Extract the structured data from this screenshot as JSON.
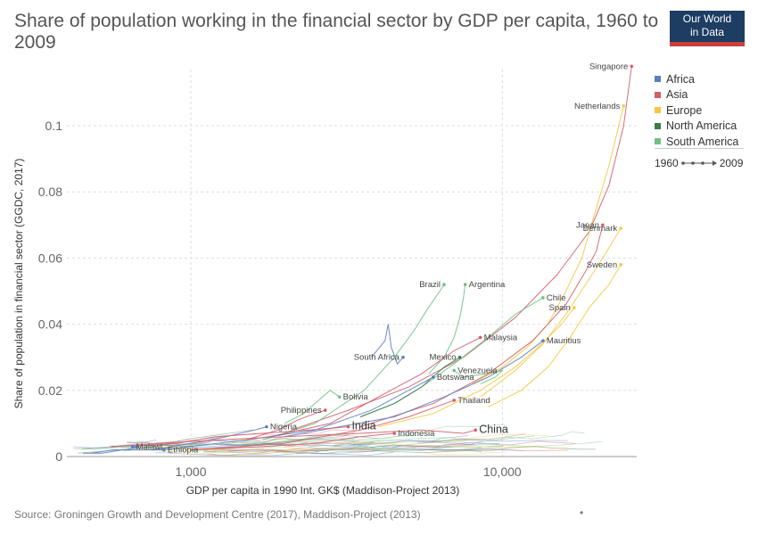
{
  "title": "Share of population working in the financial sector by GDP per capita, 1960 to 2009",
  "logo": {
    "line1": "Our World",
    "line2": "in Data"
  },
  "source": "Source: Groningen Growth and Development Centre (2017), Maddison-Project (2013)",
  "footer_dot": "•",
  "time_legend": {
    "start": "1960",
    "end": "2009"
  },
  "colors": {
    "Africa": "#5b80c0",
    "Asia": "#d25e6c",
    "Europe": "#f5c842",
    "North America": "#3e7c4b",
    "South America": "#6fc082"
  },
  "chart_data": {
    "type": "scatter",
    "title": "Share of population working in the financial sector by GDP per capita, 1960 to 2009",
    "xlabel": "GDP per capita in 1990 Int. GK$ (Maddison-Project 2013)",
    "ylabel": "Share of population in financial sector (GGDC, 2017)",
    "x_scale": "log",
    "xlim": [
      400,
      27000
    ],
    "ylim": [
      0,
      0.117
    ],
    "x_ticks": [
      {
        "value": 1000,
        "label": "1,000"
      },
      {
        "value": 10000,
        "label": "10,000"
      }
    ],
    "y_ticks": [
      {
        "value": 0,
        "label": "0"
      },
      {
        "value": 0.02,
        "label": "0.02"
      },
      {
        "value": 0.04,
        "label": "0.04"
      },
      {
        "value": 0.06,
        "label": "0.06"
      },
      {
        "value": 0.08,
        "label": "0.08"
      },
      {
        "value": 0.1,
        "label": "0.1"
      }
    ],
    "grid": true,
    "legend": {
      "position": "right",
      "entries": [
        "Africa",
        "Asia",
        "Europe",
        "North America",
        "South America"
      ]
    },
    "series": [
      {
        "name": "Singapore",
        "region": "Asia",
        "label_pos": "left",
        "points": [
          [
            2100,
            0.008
          ],
          [
            3200,
            0.014
          ],
          [
            5000,
            0.021
          ],
          [
            7500,
            0.03
          ],
          [
            11000,
            0.042
          ],
          [
            15000,
            0.055
          ],
          [
            19000,
            0.068
          ],
          [
            22000,
            0.082
          ],
          [
            24500,
            0.1
          ],
          [
            26000,
            0.118
          ]
        ]
      },
      {
        "name": "Netherlands",
        "region": "Europe",
        "label_pos": "left",
        "points": [
          [
            8000,
            0.022
          ],
          [
            10000,
            0.027
          ],
          [
            12000,
            0.033
          ],
          [
            14000,
            0.04
          ],
          [
            16000,
            0.05
          ],
          [
            18000,
            0.06
          ],
          [
            20000,
            0.075
          ],
          [
            22000,
            0.088
          ],
          [
            24500,
            0.106
          ]
        ]
      },
      {
        "name": "Denmark",
        "region": "Europe",
        "label_pos": "left",
        "points": [
          [
            8500,
            0.018
          ],
          [
            11000,
            0.026
          ],
          [
            13500,
            0.034
          ],
          [
            16000,
            0.043
          ],
          [
            18500,
            0.052
          ],
          [
            21000,
            0.06
          ],
          [
            24000,
            0.069
          ]
        ]
      },
      {
        "name": "Japan",
        "region": "Asia",
        "label_pos": "left",
        "points": [
          [
            3500,
            0.009
          ],
          [
            6000,
            0.016
          ],
          [
            9000,
            0.025
          ],
          [
            12500,
            0.035
          ],
          [
            16000,
            0.046
          ],
          [
            18500,
            0.056
          ],
          [
            20000,
            0.062
          ],
          [
            21000,
            0.07
          ]
        ]
      },
      {
        "name": "Sweden",
        "region": "Europe",
        "label_pos": "left",
        "points": [
          [
            9000,
            0.015
          ],
          [
            11500,
            0.02
          ],
          [
            14000,
            0.027
          ],
          [
            16500,
            0.036
          ],
          [
            19000,
            0.045
          ],
          [
            22000,
            0.052
          ],
          [
            24000,
            0.058
          ]
        ]
      },
      {
        "name": "Spain",
        "region": "Europe",
        "label_pos": "left",
        "points": [
          [
            4000,
            0.009
          ],
          [
            6000,
            0.013
          ],
          [
            8500,
            0.02
          ],
          [
            11000,
            0.027
          ],
          [
            13000,
            0.033
          ],
          [
            15500,
            0.04
          ],
          [
            17000,
            0.045
          ]
        ]
      },
      {
        "name": "Mauritius",
        "region": "Africa",
        "label_pos": "right",
        "points": [
          [
            2000,
            0.006
          ],
          [
            3000,
            0.009
          ],
          [
            4500,
            0.012
          ],
          [
            6500,
            0.018
          ],
          [
            9000,
            0.024
          ],
          [
            11500,
            0.03
          ],
          [
            13500,
            0.035
          ]
        ]
      },
      {
        "name": "Chile",
        "region": "South America",
        "label_pos": "right",
        "points": [
          [
            3500,
            0.012
          ],
          [
            4500,
            0.016
          ],
          [
            5500,
            0.021
          ],
          [
            7000,
            0.028
          ],
          [
            9000,
            0.036
          ],
          [
            11000,
            0.043
          ],
          [
            13500,
            0.048
          ]
        ]
      },
      {
        "name": "Brazil",
        "region": "South America",
        "label_pos": "left",
        "points": [
          [
            1700,
            0.005
          ],
          [
            2500,
            0.01
          ],
          [
            3600,
            0.02
          ],
          [
            4500,
            0.03
          ],
          [
            5200,
            0.038
          ],
          [
            5700,
            0.044
          ],
          [
            6300,
            0.05
          ],
          [
            6500,
            0.052
          ]
        ]
      },
      {
        "name": "Argentina",
        "region": "South America",
        "label_pos": "right",
        "points": [
          [
            5800,
            0.025
          ],
          [
            6500,
            0.03
          ],
          [
            7000,
            0.036
          ],
          [
            7300,
            0.042
          ],
          [
            7500,
            0.048
          ],
          [
            7600,
            0.052
          ]
        ]
      },
      {
        "name": "South Africa",
        "region": "Africa",
        "label_pos": "left",
        "points": [
          [
            3800,
            0.03
          ],
          [
            4200,
            0.035
          ],
          [
            4300,
            0.04
          ],
          [
            4400,
            0.033
          ],
          [
            4600,
            0.028
          ],
          [
            4800,
            0.03
          ]
        ]
      },
      {
        "name": "Malaysia",
        "region": "Asia",
        "label_pos": "right",
        "points": [
          [
            1800,
            0.006
          ],
          [
            2800,
            0.01
          ],
          [
            4000,
            0.018
          ],
          [
            5500,
            0.025
          ],
          [
            7000,
            0.032
          ],
          [
            8500,
            0.036
          ]
        ]
      },
      {
        "name": "Mexico",
        "region": "North America",
        "label_pos": "left",
        "points": [
          [
            3500,
            0.012
          ],
          [
            4500,
            0.016
          ],
          [
            5500,
            0.021
          ],
          [
            6500,
            0.027
          ],
          [
            7300,
            0.03
          ]
        ]
      },
      {
        "name": "Venezuela",
        "region": "South America",
        "label_pos": "right",
        "points": [
          [
            8500,
            0.022
          ],
          [
            9500,
            0.024
          ],
          [
            10000,
            0.026
          ],
          [
            8800,
            0.025
          ],
          [
            7500,
            0.024
          ],
          [
            7000,
            0.026
          ]
        ]
      },
      {
        "name": "Botswana",
        "region": "Africa",
        "label_pos": "right",
        "points": [
          [
            800,
            0.002
          ],
          [
            1500,
            0.005
          ],
          [
            2500,
            0.008
          ],
          [
            3800,
            0.014
          ],
          [
            5000,
            0.02
          ],
          [
            6000,
            0.024
          ]
        ]
      },
      {
        "name": "Bolivia",
        "region": "South America",
        "label_pos": "right",
        "points": [
          [
            2000,
            0.01
          ],
          [
            2300,
            0.013
          ],
          [
            2500,
            0.016
          ],
          [
            2800,
            0.02
          ],
          [
            3000,
            0.018
          ]
        ]
      },
      {
        "name": "Philippines",
        "region": "Asia",
        "label_pos": "left",
        "points": [
          [
            1500,
            0.005
          ],
          [
            1900,
            0.008
          ],
          [
            2200,
            0.011
          ],
          [
            2500,
            0.013
          ],
          [
            2700,
            0.014
          ]
        ]
      },
      {
        "name": "Thailand",
        "region": "Asia",
        "label_pos": "right",
        "points": [
          [
            1000,
            0.002
          ],
          [
            2000,
            0.004
          ],
          [
            3500,
            0.008
          ],
          [
            5000,
            0.012
          ],
          [
            7000,
            0.017
          ]
        ]
      },
      {
        "name": "Nigeria",
        "region": "Africa",
        "label_pos": "right",
        "points": [
          [
            750,
            0.002
          ],
          [
            1000,
            0.004
          ],
          [
            1300,
            0.006
          ],
          [
            1600,
            0.008
          ],
          [
            1750,
            0.009
          ]
        ]
      },
      {
        "name": "India",
        "region": "Asia",
        "label_pos": "right",
        "big": true,
        "points": [
          [
            650,
            0.003
          ],
          [
            900,
            0.004
          ],
          [
            1200,
            0.006
          ],
          [
            1700,
            0.007
          ],
          [
            2400,
            0.008
          ],
          [
            3200,
            0.009
          ]
        ]
      },
      {
        "name": "Indonesia",
        "region": "Asia",
        "label_pos": "right",
        "points": [
          [
            1000,
            0.002
          ],
          [
            1700,
            0.003
          ],
          [
            2500,
            0.004
          ],
          [
            3500,
            0.006
          ],
          [
            4500,
            0.007
          ]
        ]
      },
      {
        "name": "China",
        "region": "Asia",
        "label_pos": "right",
        "big": true,
        "points": [
          [
            550,
            0.003
          ],
          [
            800,
            0.004
          ],
          [
            1200,
            0.005
          ],
          [
            2000,
            0.006
          ],
          [
            3500,
            0.007
          ],
          [
            5500,
            0.008
          ],
          [
            7500,
            0.007
          ],
          [
            8200,
            0.008
          ]
        ]
      },
      {
        "name": "Malawi",
        "region": "Africa",
        "label_pos": "right",
        "points": [
          [
            480,
            0.001
          ],
          [
            560,
            0.002
          ],
          [
            620,
            0.002
          ],
          [
            680,
            0.003
          ],
          [
            650,
            0.003
          ]
        ]
      },
      {
        "name": "Ethiopia",
        "region": "Africa",
        "label_pos": "right",
        "points": [
          [
            450,
            0.001
          ],
          [
            520,
            0.001
          ],
          [
            600,
            0.002
          ],
          [
            700,
            0.002
          ],
          [
            820,
            0.002
          ]
        ]
      }
    ]
  }
}
